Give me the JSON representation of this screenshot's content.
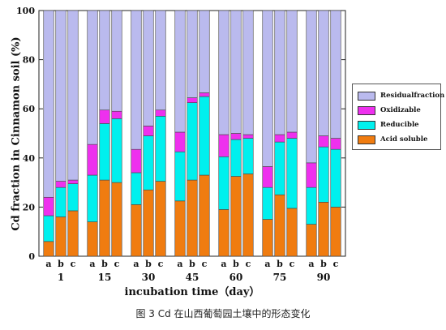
{
  "caption": "图  3 Cd 在山西葡萄园土壤中的形态变化",
  "chart_data": {
    "type": "bar",
    "stacked": true,
    "ylabel": "Cd fraction in Cinnamon soil  (%)",
    "xlabel": "incubation time（day）",
    "ylim": [
      0,
      100
    ],
    "yticks": [
      0,
      20,
      40,
      60,
      80,
      100
    ],
    "groups": [
      "1",
      "15",
      "30",
      "45",
      "60",
      "75",
      "90"
    ],
    "subgroups": [
      "a",
      "b",
      "c"
    ],
    "legend_position": "right",
    "series": [
      {
        "name": "Acid soluble",
        "color": "#f07c10",
        "values": [
          6,
          16,
          18.5,
          14,
          31,
          30,
          21,
          27,
          30.5,
          22.5,
          31,
          33,
          19,
          32.5,
          33.5,
          15,
          25,
          19.5,
          13,
          22,
          20
        ]
      },
      {
        "name": "Reducible",
        "color": "#00f0ee",
        "values": [
          10.5,
          12,
          11,
          19,
          23,
          26,
          13,
          22,
          26.5,
          20,
          31.5,
          32,
          21.5,
          15,
          14.5,
          13,
          21.5,
          28.5,
          15,
          22.5,
          23.5
        ]
      },
      {
        "name": "Oxidizable",
        "color": "#ee30ee",
        "values": [
          7.5,
          2.5,
          1.5,
          12.5,
          5.5,
          3,
          9.5,
          4,
          2.5,
          8,
          2,
          1.5,
          9,
          2.5,
          1.5,
          8.5,
          3,
          2.5,
          10,
          4.5,
          4.5
        ]
      },
      {
        "name": "Residualfraction",
        "color": "#babaee",
        "values": [
          76,
          69.5,
          69,
          54.5,
          40.5,
          41,
          56.5,
          47,
          40.5,
          49.5,
          35.5,
          33.5,
          50.5,
          50,
          50.5,
          63.5,
          50.5,
          49.5,
          62,
          51,
          52
        ]
      }
    ]
  }
}
